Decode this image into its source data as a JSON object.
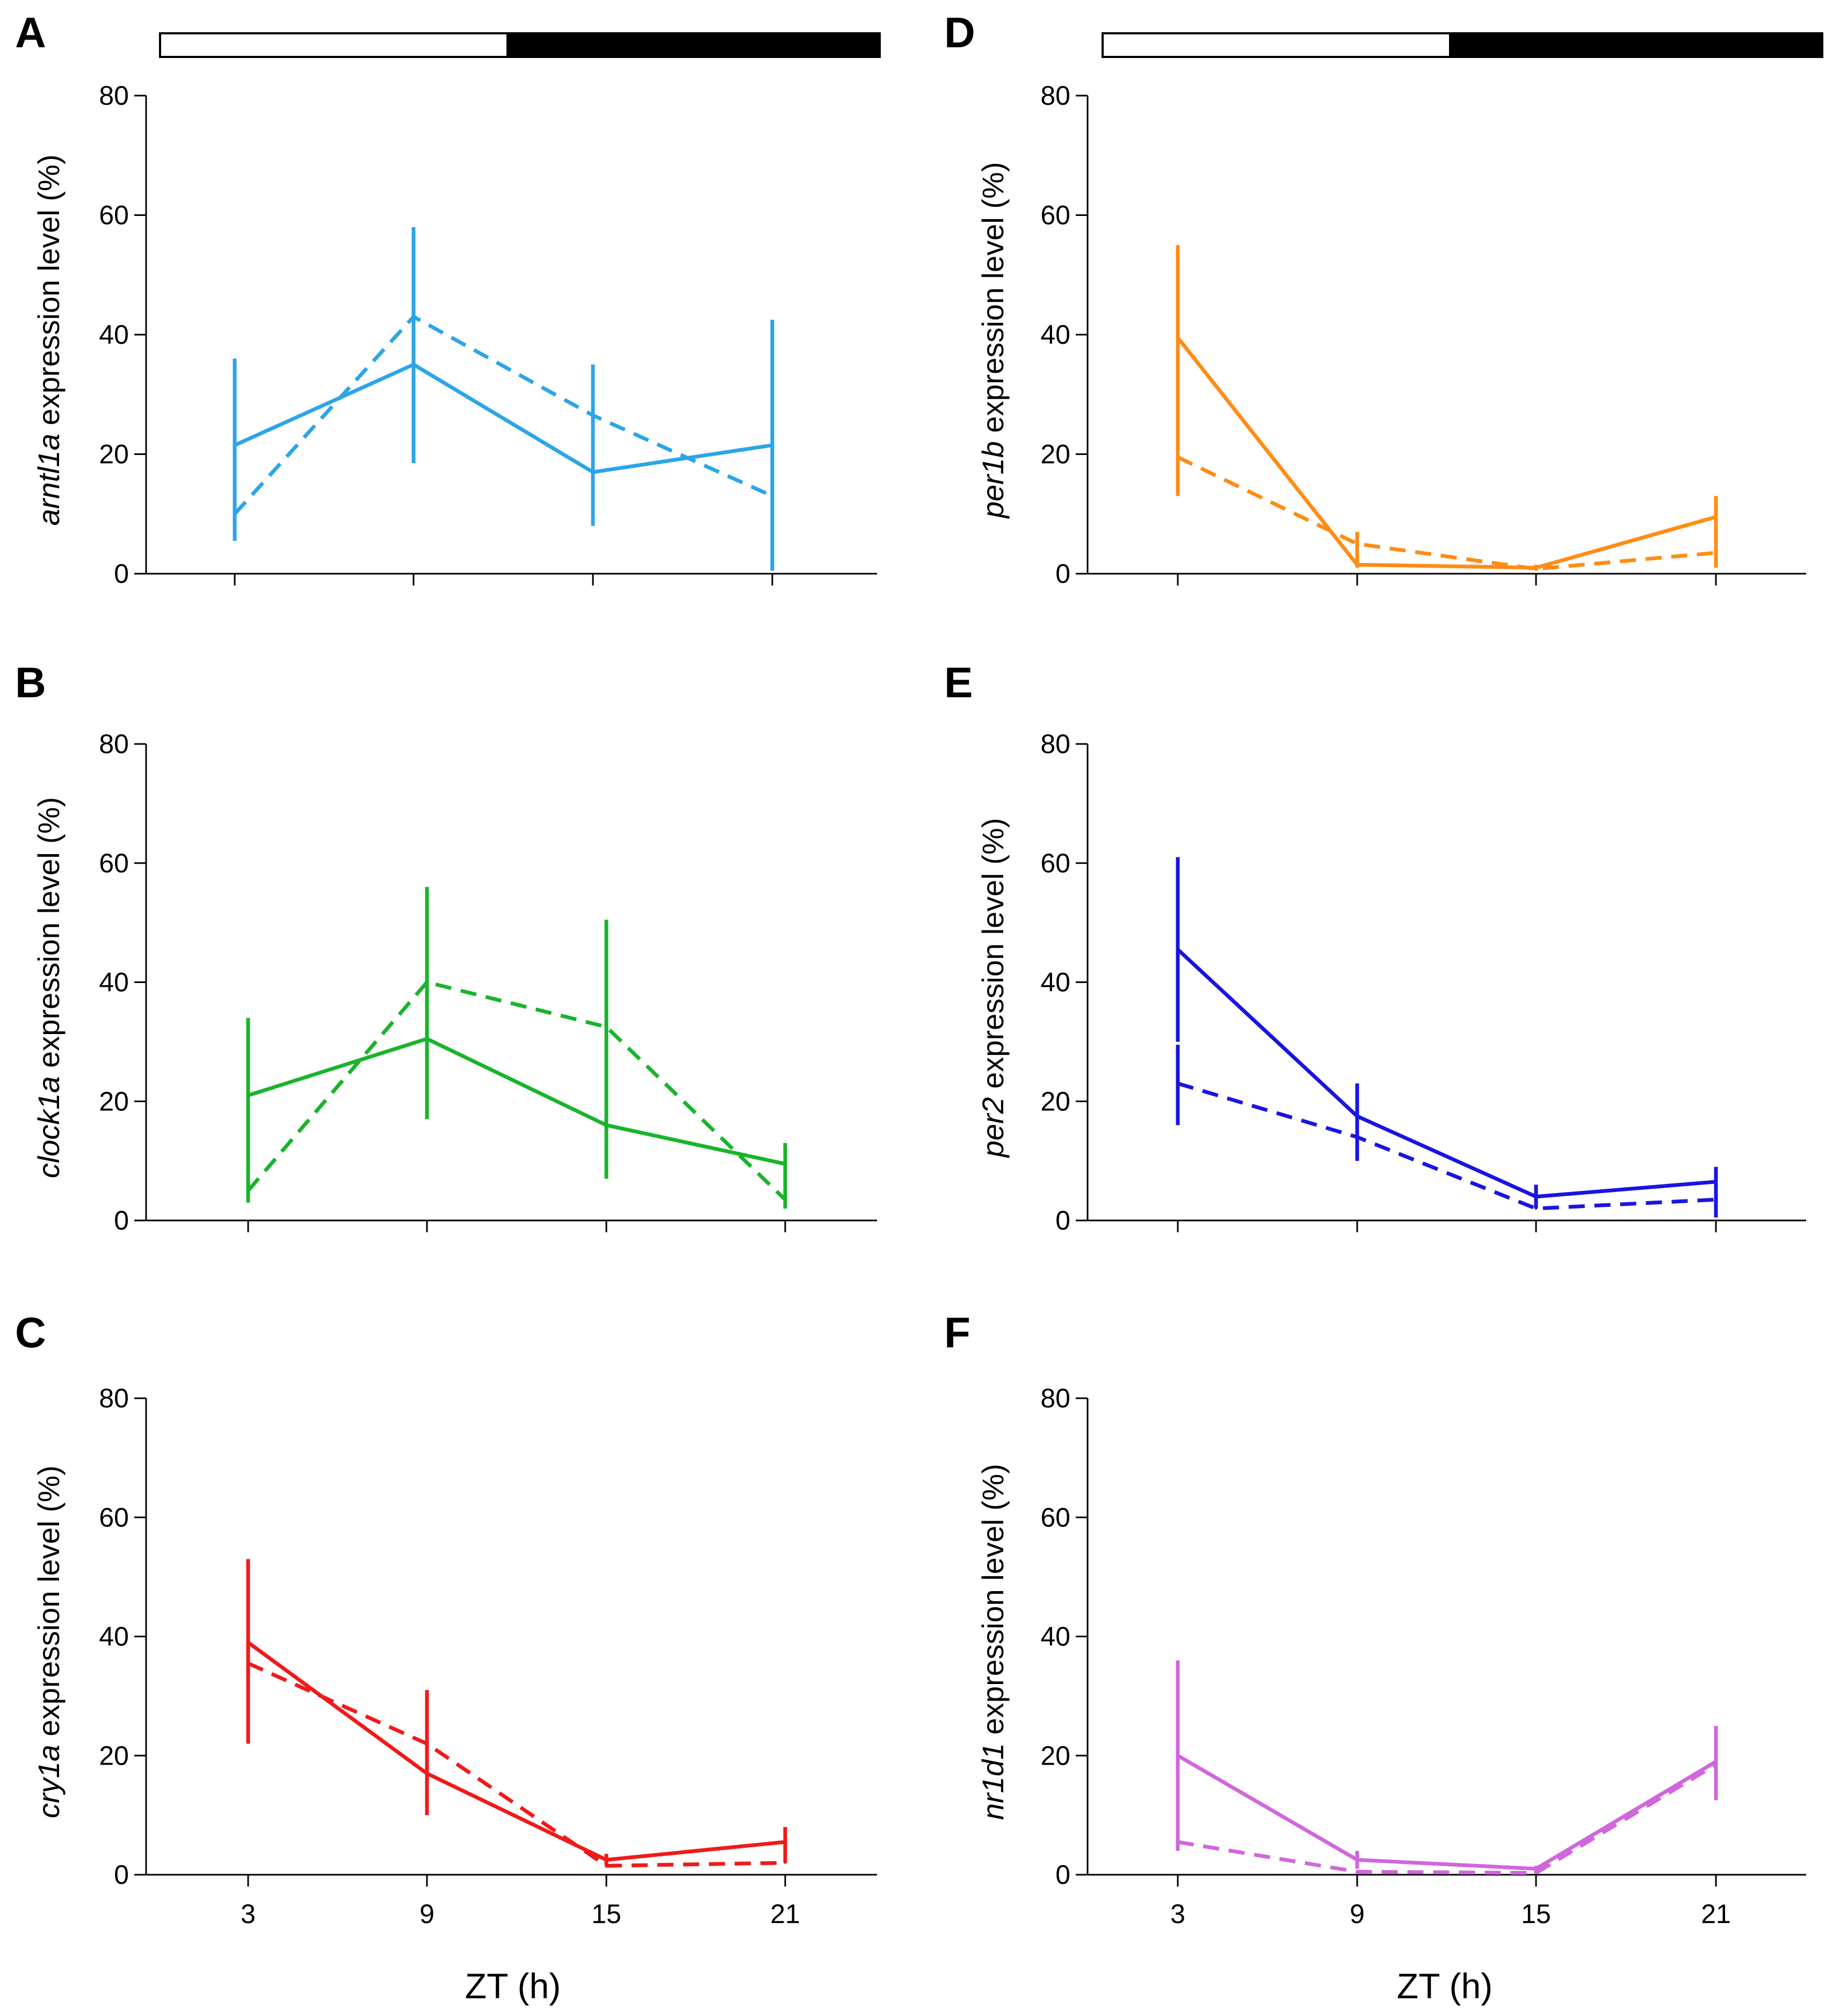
{
  "figure": {
    "xlabel": "ZT (h)",
    "light_dark_bar": {
      "light": "light phase",
      "dark": "dark phase"
    }
  },
  "chart_data": [
    {
      "panel": "A",
      "type": "line",
      "gene": "arntl1a",
      "ylabel_suffix": " expression level (%)",
      "color": "#2ca5e8",
      "categories": [
        3,
        9,
        15,
        21
      ],
      "ylim": [
        0,
        80
      ],
      "yticks": [
        0,
        20,
        40,
        60,
        80
      ],
      "show_xticklabels": false,
      "show_lightbar": true,
      "series": [
        {
          "name": "solid",
          "dash": false,
          "values": [
            21.5,
            35,
            17,
            21.5
          ],
          "err_low": [
            5.5,
            18.5,
            8,
            0.5
          ],
          "err_high": [
            36,
            58,
            35,
            42.5
          ]
        },
        {
          "name": "dashed",
          "dash": true,
          "values": [
            10,
            43,
            26.5,
            13
          ]
        }
      ]
    },
    {
      "panel": "B",
      "type": "line",
      "gene": "clock1a",
      "ylabel_suffix": " expression level (%)",
      "color": "#19b42b",
      "categories": [
        3,
        9,
        15,
        21
      ],
      "ylim": [
        0,
        80
      ],
      "yticks": [
        0,
        20,
        40,
        60,
        80
      ],
      "show_xticklabels": false,
      "show_lightbar": false,
      "series": [
        {
          "name": "solid",
          "dash": false,
          "values": [
            21,
            30.5,
            16,
            9.5
          ],
          "err_low": [
            8,
            17,
            7,
            5.5
          ],
          "err_high": [
            34,
            56,
            50.5,
            13
          ]
        },
        {
          "name": "dashed",
          "dash": true,
          "values": [
            5,
            40,
            32.5,
            3.5
          ],
          "err_low": [
            3,
            null,
            null,
            2
          ],
          "err_high": [
            11,
            null,
            null,
            6
          ]
        }
      ]
    },
    {
      "panel": "C",
      "type": "line",
      "gene": "cry1a",
      "ylabel_suffix": " expression level (%)",
      "color": "#f01a1a",
      "categories": [
        3,
        9,
        15,
        21
      ],
      "ylim": [
        0,
        80
      ],
      "yticks": [
        0,
        20,
        40,
        60,
        80
      ],
      "show_xticklabels": true,
      "show_lightbar": false,
      "series": [
        {
          "name": "solid",
          "dash": false,
          "values": [
            39,
            17,
            2.5,
            5.5
          ],
          "err_low": [
            22,
            10,
            1.5,
            2
          ],
          "err_high": [
            53,
            31,
            3.5,
            8
          ]
        },
        {
          "name": "dashed",
          "dash": true,
          "values": [
            35.5,
            22,
            1.5,
            2
          ]
        }
      ]
    },
    {
      "panel": "D",
      "type": "line",
      "gene": "per1b",
      "ylabel_suffix": " expression level (%)",
      "color": "#ff8c14",
      "categories": [
        3,
        9,
        15,
        21
      ],
      "ylim": [
        0,
        80
      ],
      "yticks": [
        0,
        20,
        40,
        60,
        80
      ],
      "show_xticklabels": false,
      "show_lightbar": true,
      "series": [
        {
          "name": "solid",
          "dash": false,
          "values": [
            39.5,
            1.5,
            1,
            9.5
          ],
          "err_low": [
            13,
            1,
            0.5,
            1
          ],
          "err_high": [
            55,
            7,
            1.5,
            13
          ]
        },
        {
          "name": "dashed",
          "dash": true,
          "values": [
            19.5,
            5,
            0.8,
            3.5
          ]
        }
      ]
    },
    {
      "panel": "E",
      "type": "line",
      "gene": "per2",
      "ylabel_suffix": " expression level (%)",
      "color": "#1a14e0",
      "categories": [
        3,
        9,
        15,
        21
      ],
      "ylim": [
        0,
        80
      ],
      "yticks": [
        0,
        20,
        40,
        60,
        80
      ],
      "show_xticklabels": false,
      "show_lightbar": false,
      "series": [
        {
          "name": "solid",
          "dash": false,
          "values": [
            45.5,
            17.5,
            4,
            6.5
          ],
          "err_low": [
            30,
            12,
            2,
            0.5
          ],
          "err_high": [
            61,
            23,
            6,
            9
          ]
        },
        {
          "name": "dashed",
          "dash": true,
          "values": [
            23,
            14,
            2,
            3.5
          ],
          "err_low": [
            16,
            10,
            null,
            null
          ],
          "err_high": [
            29.5,
            18,
            null,
            null
          ]
        }
      ]
    },
    {
      "panel": "F",
      "type": "line",
      "gene": "nr1d1",
      "ylabel_suffix": " expression level (%)",
      "color": "#d166dd",
      "categories": [
        3,
        9,
        15,
        21
      ],
      "ylim": [
        0,
        80
      ],
      "yticks": [
        0,
        20,
        40,
        60,
        80
      ],
      "show_xticklabels": true,
      "show_lightbar": false,
      "series": [
        {
          "name": "solid",
          "dash": false,
          "values": [
            20,
            2.5,
            1,
            19
          ],
          "err_low": [
            4,
            1,
            0.2,
            12.5
          ],
          "err_high": [
            36,
            4,
            1.5,
            25
          ]
        },
        {
          "name": "dashed",
          "dash": true,
          "values": [
            5.5,
            0.5,
            0.3,
            18.5
          ]
        }
      ]
    }
  ]
}
